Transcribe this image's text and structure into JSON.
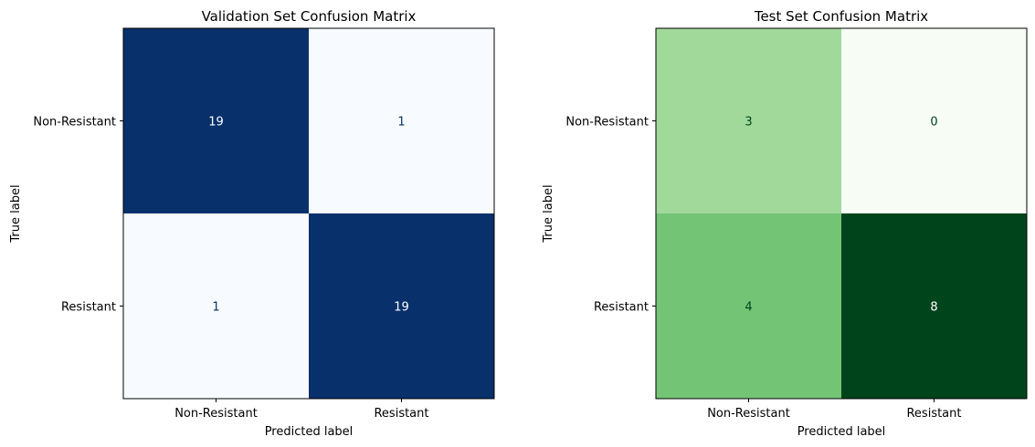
{
  "chart_data": [
    {
      "type": "heatmap",
      "title": "Validation Set Confusion Matrix",
      "xlabel": "Predicted label",
      "ylabel": "True label",
      "x_categories": [
        "Non-Resistant",
        "Resistant"
      ],
      "y_categories": [
        "Non-Resistant",
        "Resistant"
      ],
      "values": [
        [
          19,
          1
        ],
        [
          1,
          19
        ]
      ],
      "colormap": "Blues",
      "color_low": "#f7fbff",
      "color_high": "#08306b"
    },
    {
      "type": "heatmap",
      "title": "Test Set Confusion Matrix",
      "xlabel": "Predicted label",
      "ylabel": "True label",
      "x_categories": [
        "Non-Resistant",
        "Resistant"
      ],
      "y_categories": [
        "Non-Resistant",
        "Resistant"
      ],
      "values": [
        [
          3,
          0
        ],
        [
          4,
          8
        ]
      ],
      "colormap": "Greens",
      "color_low": "#f7fcf5",
      "color_high": "#00441b"
    }
  ]
}
